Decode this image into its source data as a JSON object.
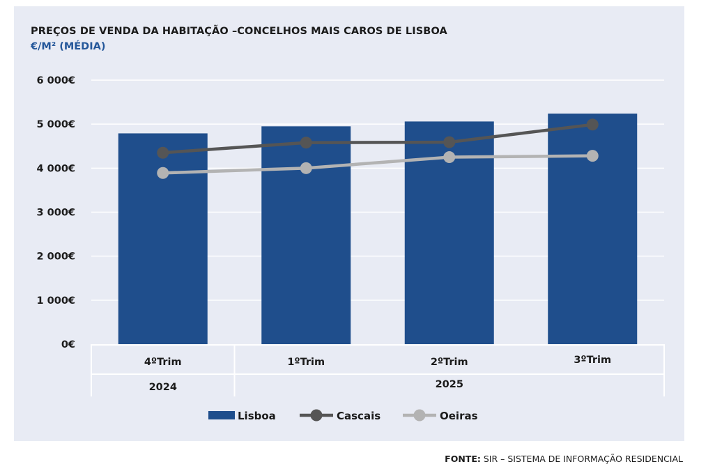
{
  "chart_data": {
    "type": "bar+line",
    "title": "PREÇOS DE VENDA DA HABITAÇÃO –CONCELHOS MAIS CAROS DE LISBOA",
    "subtitle": "€/M² (MÉDIA)",
    "categories": [
      "4ºTrim",
      "1ºTrim",
      "2ºTrim",
      "3ºTrim"
    ],
    "year_groups": [
      {
        "label": "2024",
        "span": [
          0,
          0
        ]
      },
      {
        "label": "2025",
        "span": [
          1,
          3
        ]
      }
    ],
    "yticks": [
      0,
      1000,
      2000,
      3000,
      4000,
      5000,
      6000
    ],
    "ytick_labels": [
      "0€",
      "1 000€",
      "2 000€",
      "3 000€",
      "4 000€",
      "5 000€",
      "6 000€"
    ],
    "ylim": [
      0,
      6000
    ],
    "grid": true,
    "legend_position": "bottom",
    "series": [
      {
        "name": "Lisboa",
        "kind": "bar",
        "color": "#1f4e8c",
        "values": [
          4790,
          4950,
          5060,
          5240
        ]
      },
      {
        "name": "Cascais",
        "kind": "line",
        "color": "#555555",
        "values": [
          4350,
          4580,
          4590,
          4990
        ]
      },
      {
        "name": "Oeiras",
        "kind": "line",
        "color": "#b3b3b3",
        "values": [
          3890,
          4000,
          4250,
          4280
        ]
      }
    ]
  },
  "source": {
    "label": "FONTE:",
    "text": " SIR – SISTEMA DE INFORMAÇÃO RESIDENCIAL"
  }
}
